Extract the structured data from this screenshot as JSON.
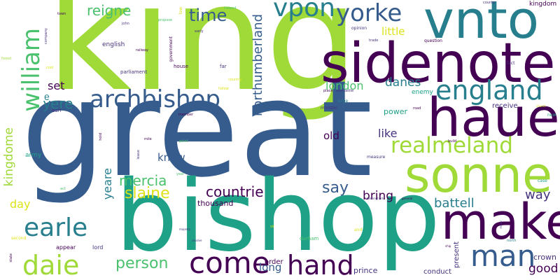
{
  "palette": {
    "background": "#ffffff",
    "purple": "#440154",
    "indigo": "#46327e",
    "blue": "#365c8d",
    "teal": "#277f8e",
    "green": "#1fa187",
    "lime": "#4ac16d",
    "yellowgreen": "#a0da39",
    "yellow": "#dde318"
  },
  "words": [
    {
      "text": "king",
      "color": "#a0da39"
    },
    {
      "text": "great",
      "color": "#365c8d"
    },
    {
      "text": "bishop",
      "color": "#1fa187"
    },
    {
      "text": "sidenote",
      "color": "#440154"
    },
    {
      "text": "vnto",
      "color": "#277f8e"
    },
    {
      "text": "haue",
      "color": "#440154"
    },
    {
      "text": "sonne",
      "color": "#a0da39"
    },
    {
      "text": "make",
      "color": "#440154"
    },
    {
      "text": "archbishop",
      "color": "#365c8d"
    },
    {
      "text": "england",
      "color": "#277f8e"
    },
    {
      "text": "realmeland",
      "color": "#a0da39"
    },
    {
      "text": "william",
      "color": "#4ac16d"
    },
    {
      "text": "yorke",
      "color": "#365c8d"
    },
    {
      "text": "vpon",
      "color": "#277f8e"
    },
    {
      "text": "man",
      "color": "#365c8d"
    },
    {
      "text": "come",
      "color": "#440154"
    },
    {
      "text": "hand",
      "color": "#440154"
    },
    {
      "text": "daie",
      "color": "#a0da39"
    },
    {
      "text": "earle",
      "color": "#277f8e"
    },
    {
      "text": "reigne",
      "color": "#4ac16d"
    },
    {
      "text": "time",
      "color": "#365c8d"
    },
    {
      "text": "northumberland",
      "color": "#365c8d"
    },
    {
      "text": "yͤere",
      "color": "#277f8e"
    },
    {
      "text": "kingdome",
      "color": "#a0da39"
    },
    {
      "text": "mercia",
      "color": "#4ac16d"
    },
    {
      "text": "slaine",
      "color": "#dde318"
    },
    {
      "text": "countrie",
      "color": "#440154"
    },
    {
      "text": "say",
      "color": "#365c8d"
    },
    {
      "text": "london",
      "color": "#4ac16d"
    },
    {
      "text": "danes",
      "color": "#277f8e"
    },
    {
      "text": "little",
      "color": "#dde318"
    },
    {
      "text": "person",
      "color": "#4ac16d"
    },
    {
      "text": "battell",
      "color": "#277f8e"
    },
    {
      "text": "bring",
      "color": "#440154"
    },
    {
      "text": "old",
      "color": "#440154"
    },
    {
      "text": "like",
      "color": "#46327e"
    },
    {
      "text": "know",
      "color": "#365c8d"
    },
    {
      "text": "yeare",
      "color": "#277f8e"
    },
    {
      "text": "way",
      "color": "#46327e"
    },
    {
      "text": "good",
      "color": "#440154"
    },
    {
      "text": "set",
      "color": "#440154"
    },
    {
      "text": "long",
      "color": "#365c8d"
    },
    {
      "text": "day",
      "color": "#dde318"
    },
    {
      "text": "thousand",
      "color": "#440154"
    },
    {
      "text": "crown",
      "color": "#46327e"
    },
    {
      "text": "prince",
      "color": "#46327e"
    },
    {
      "text": "conduct",
      "color": "#46327e"
    },
    {
      "text": "order",
      "color": "#440154"
    },
    {
      "text": "power",
      "color": "#1fa187"
    },
    {
      "text": "receive",
      "color": "#46327e"
    },
    {
      "text": "english",
      "color": "#46327e"
    },
    {
      "text": "kingdom",
      "color": "#440154"
    },
    {
      "text": "present",
      "color": "#46327e"
    },
    {
      "text": "enemy",
      "color": "#1fa187"
    },
    {
      "text": "army",
      "color": "#1fa187"
    },
    {
      "text": "lord",
      "color": "#46327e"
    },
    {
      "text": "appear",
      "color": "#440154"
    },
    {
      "text": "durham",
      "color": "#4ac16d"
    },
    {
      "text": "parliament",
      "color": "#46327e"
    },
    {
      "text": "house",
      "color": "#440154"
    },
    {
      "text": "far",
      "color": "#46327e"
    },
    {
      "text": "minister",
      "color": "#46327e"
    },
    {
      "text": "large",
      "color": "#277f8e"
    },
    {
      "text": "place",
      "color": "#440154"
    },
    {
      "text": "newcastle",
      "color": "#46327e"
    },
    {
      "text": "opinion",
      "color": "#46327e"
    },
    {
      "text": "trade",
      "color": "#46327e"
    },
    {
      "text": "question",
      "color": "#440154"
    },
    {
      "text": "railway",
      "color": "#440154"
    },
    {
      "text": "government",
      "color": "#440154"
    },
    {
      "text": "law",
      "color": "#dde318"
    },
    {
      "text": "early",
      "color": "#46327e"
    },
    {
      "text": "propose",
      "color": "#4ac16d"
    },
    {
      "text": "ireland",
      "color": "#4ac16d"
    },
    {
      "text": "john",
      "color": "#46327e"
    },
    {
      "text": "company",
      "color": "#46327e"
    },
    {
      "text": "town",
      "color": "#440154"
    },
    {
      "text": "county",
      "color": "#46327e"
    },
    {
      "text": "fact",
      "color": "#46327e"
    },
    {
      "text": "duke",
      "color": "#440154"
    },
    {
      "text": "member",
      "color": "#440154"
    },
    {
      "text": "measure",
      "color": "#46327e"
    },
    {
      "text": "build",
      "color": "#440154"
    },
    {
      "text": "road",
      "color": "#440154"
    },
    {
      "text": "new",
      "color": "#1fa187"
    },
    {
      "text": "case",
      "color": "#1fa187"
    },
    {
      "text": "north",
      "color": "#277f8e"
    },
    {
      "text": "ship",
      "color": "#440154"
    },
    {
      "text": "minor",
      "color": "#46327e"
    },
    {
      "text": "hold",
      "color": "#440154"
    },
    {
      "text": "mile",
      "color": "#440154"
    },
    {
      "text": "point",
      "color": "#4ac16d"
    },
    {
      "text": "leave",
      "color": "#46327e"
    },
    {
      "text": "year",
      "color": "#4ac16d"
    },
    {
      "text": "act",
      "color": "#4ac16d"
    },
    {
      "text": "second",
      "color": "#dde318"
    },
    {
      "text": "state",
      "color": "#440154"
    },
    {
      "text": "forest",
      "color": "#a0da39"
    },
    {
      "text": "cool",
      "color": "#dde318"
    },
    {
      "text": "earl",
      "color": "#46327e"
    },
    {
      "text": "country",
      "color": "#dde318"
    },
    {
      "text": "follow",
      "color": "#dde318"
    },
    {
      "text": "birmingham",
      "color": "#46327e"
    },
    {
      "text": "general",
      "color": "#440154"
    },
    {
      "text": "sir",
      "color": "#dde318"
    },
    {
      "text": "majesty",
      "color": "#46327e"
    },
    {
      "text": "and",
      "color": "#dde318"
    },
    {
      "text": "resolve",
      "color": "#46327e"
    },
    {
      "text": "church",
      "color": "#dde318"
    }
  ]
}
